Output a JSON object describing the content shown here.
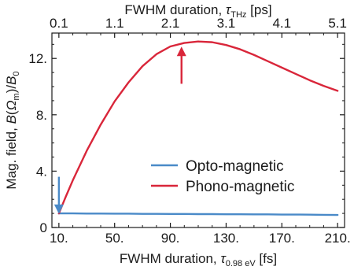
{
  "chart_data": {
    "type": "line",
    "x": [
      10,
      15,
      20,
      30,
      40,
      50,
      60,
      70,
      80,
      90,
      100,
      110,
      120,
      130,
      140,
      150,
      160,
      170,
      180,
      190,
      200,
      210
    ],
    "series": [
      {
        "name": "Opto-magnetic",
        "color": "#4a8ac8",
        "values": [
          1.0,
          1.0,
          1.0,
          0.99,
          0.99,
          0.98,
          0.98,
          0.97,
          0.97,
          0.96,
          0.96,
          0.95,
          0.95,
          0.94,
          0.94,
          0.93,
          0.93,
          0.92,
          0.92,
          0.91,
          0.9,
          0.89
        ]
      },
      {
        "name": "Phono-magnetic",
        "color": "#d9263a",
        "values": [
          1.0,
          2.2,
          3.35,
          5.45,
          7.3,
          8.95,
          10.3,
          11.45,
          12.3,
          12.85,
          13.1,
          13.2,
          13.15,
          12.95,
          12.65,
          12.25,
          11.8,
          11.35,
          10.9,
          10.45,
          10.05,
          9.7
        ]
      }
    ],
    "xlabel_main": "FWHM duration, ",
    "xlabel_sym": "τ",
    "xlabel_sub": "0.98 eV",
    "xlabel_unit": " [fs]",
    "top_label_main": "FWHM duration, ",
    "top_label_sym": "τ",
    "top_label_sub": "THz",
    "top_label_unit": " [ps]",
    "ylabel": "Mag. field, B(Ωm)/B0",
    "ylabel_parts": {
      "prefix": "Mag. field, ",
      "b1": "B",
      "paren_open": "(",
      "omega": "Ω",
      "omega_sub": "m",
      "paren_close": ")/",
      "b2": "B",
      "b2_sub": "0"
    },
    "xlim": [
      5,
      215
    ],
    "ylim": [
      0,
      13.8
    ],
    "xticks": [
      10,
      50,
      90,
      130,
      170,
      210
    ],
    "xtick_labels": [
      "10.",
      "50.",
      "90.",
      "130.",
      "170.",
      "210."
    ],
    "top_ticks": [
      10,
      50,
      90,
      130,
      170,
      210
    ],
    "top_tick_labels": [
      "0.1",
      "1.1",
      "2.1",
      "3.1",
      "4.1",
      "5.1"
    ],
    "yticks": [
      0,
      4,
      8,
      12
    ],
    "ytick_labels": [
      "0",
      "4.",
      "8.",
      "12."
    ],
    "legend_position": "bottom-right",
    "annotations": [
      {
        "type": "arrow",
        "color": "#4a8ac8",
        "x": 10,
        "y_from": 3.6,
        "y_to": 1.1
      },
      {
        "type": "arrow",
        "color": "#d9263a",
        "x": 98,
        "y_from": 10.2,
        "y_to": 12.7
      }
    ]
  }
}
